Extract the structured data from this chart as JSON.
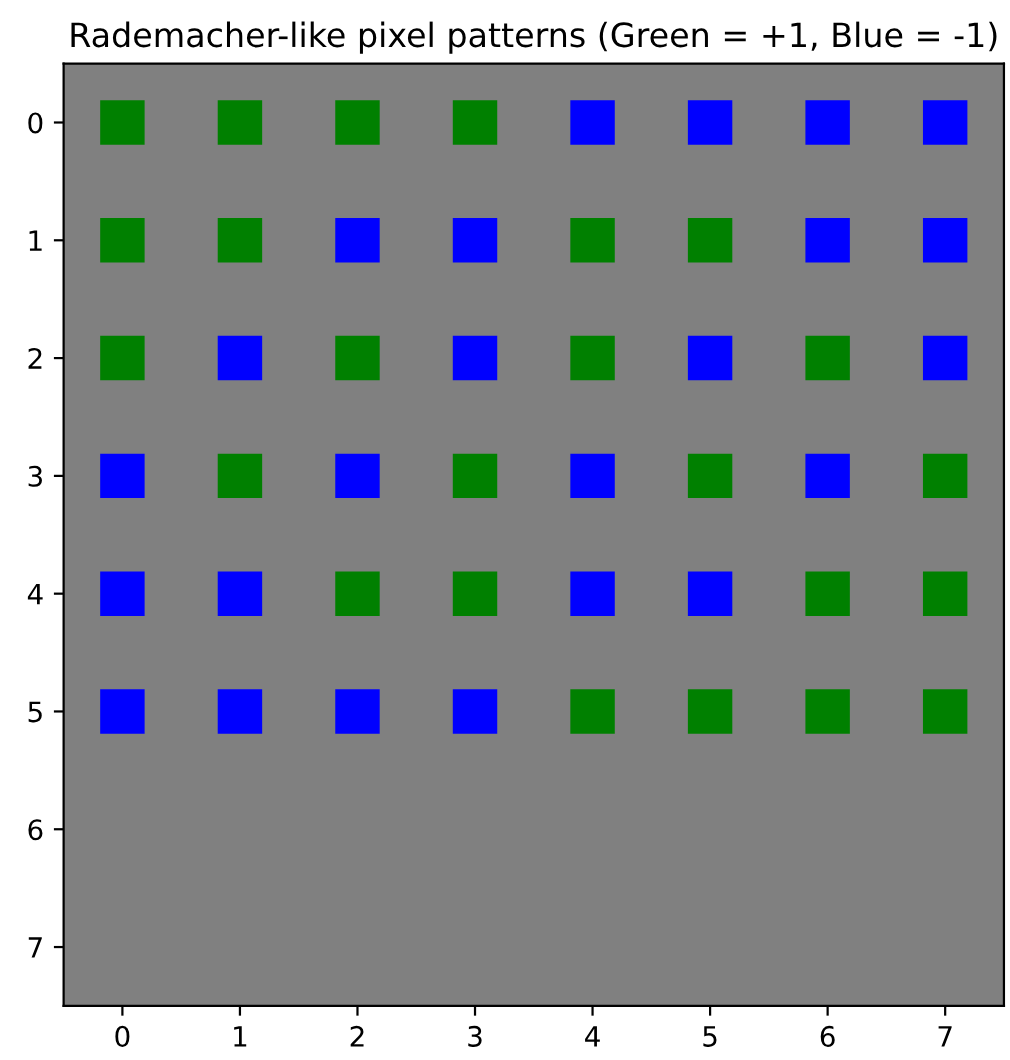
{
  "chart_data": {
    "type": "scatter",
    "title": "Rademacher-like pixel patterns (Green = +1, Blue = -1)",
    "marker": "square",
    "grid": false,
    "legend": false,
    "xlim": [
      -0.5,
      7.5
    ],
    "ylim": [
      7.5,
      -0.5
    ],
    "xticks": [
      0,
      1,
      2,
      3,
      4,
      5,
      6,
      7
    ],
    "yticks": [
      0,
      1,
      2,
      3,
      4,
      5,
      6,
      7
    ],
    "series": [
      {
        "color": "#008000",
        "x": [
          0,
          1,
          2,
          3,
          0,
          1,
          4,
          5,
          0,
          2,
          4,
          6,
          1,
          3,
          5,
          7,
          2,
          3,
          6,
          7,
          4,
          5,
          6,
          7
        ],
        "values": [
          0,
          0,
          0,
          0,
          1,
          1,
          1,
          1,
          2,
          2,
          2,
          2,
          3,
          3,
          3,
          3,
          4,
          4,
          4,
          4,
          5,
          5,
          5,
          5
        ]
      },
      {
        "color": "#0000ff",
        "x": [
          4,
          5,
          6,
          7,
          2,
          3,
          6,
          7,
          1,
          3,
          5,
          7,
          0,
          2,
          4,
          6,
          0,
          1,
          4,
          5,
          0,
          1,
          2,
          3
        ],
        "values": [
          0,
          0,
          0,
          0,
          1,
          1,
          1,
          1,
          2,
          2,
          2,
          2,
          3,
          3,
          3,
          3,
          4,
          4,
          4,
          4,
          5,
          5,
          5,
          5
        ]
      }
    ]
  }
}
